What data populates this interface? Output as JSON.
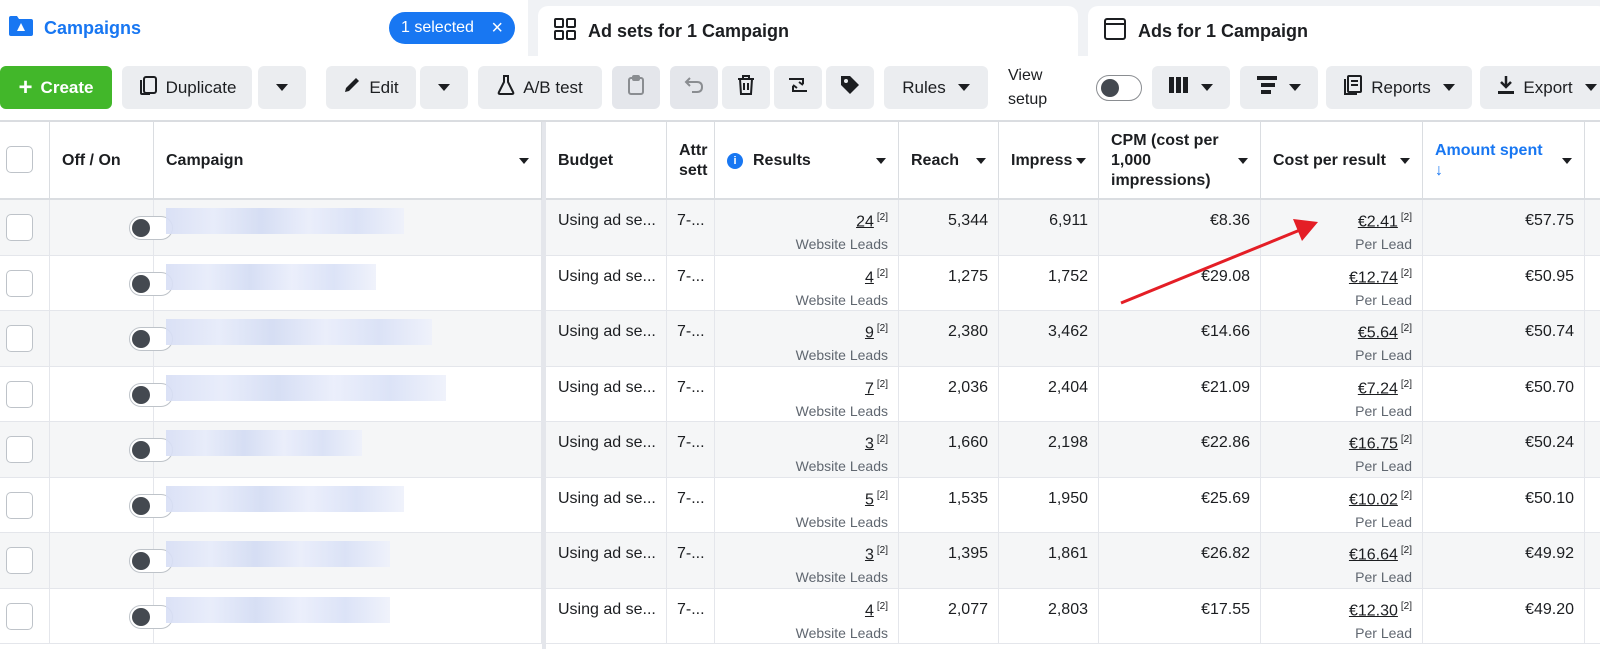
{
  "tabs": {
    "campaigns": "Campaigns",
    "selected": "1 selected",
    "adsets": "Ad sets for 1 Campaign",
    "ads": "Ads for 1 Campaign"
  },
  "toolbar": {
    "create": "Create",
    "duplicate": "Duplicate",
    "edit": "Edit",
    "ab_test": "A/B test",
    "rules": "Rules",
    "view_setup": "View setup",
    "reports": "Reports",
    "export": "Export"
  },
  "columns": {
    "off_on": "Off / On",
    "campaign": "Campaign",
    "budget": "Budget",
    "attribution": "Attr sett",
    "results": "Results",
    "reach": "Reach",
    "impressions": "Impress",
    "cpm": "CPM (cost per 1,000 impressions)",
    "cost_per_result": "Cost per result",
    "amount_spent": "Amount spent ↓"
  },
  "rows": [
    {
      "budget": "Using ad se...",
      "attr": "7-...",
      "results": "24",
      "results_sup": "[2]",
      "results_type": "Website Leads",
      "reach": "5,344",
      "impressions": "6,911",
      "cpm": "€8.36",
      "cpr": "€2.41",
      "cpr_sup": "[2]",
      "cpr_type": "Per Lead",
      "spent": "€57.75"
    },
    {
      "budget": "Using ad se...",
      "attr": "7-...",
      "results": "4",
      "results_sup": "[2]",
      "results_type": "Website Leads",
      "reach": "1,275",
      "impressions": "1,752",
      "cpm": "€29.08",
      "cpr": "€12.74",
      "cpr_sup": "[2]",
      "cpr_type": "Per Lead",
      "spent": "€50.95"
    },
    {
      "budget": "Using ad se...",
      "attr": "7-...",
      "results": "9",
      "results_sup": "[2]",
      "results_type": "Website Leads",
      "reach": "2,380",
      "impressions": "3,462",
      "cpm": "€14.66",
      "cpr": "€5.64",
      "cpr_sup": "[2]",
      "cpr_type": "Per Lead",
      "spent": "€50.74"
    },
    {
      "budget": "Using ad se...",
      "attr": "7-...",
      "results": "7",
      "results_sup": "[2]",
      "results_type": "Website Leads",
      "reach": "2,036",
      "impressions": "2,404",
      "cpm": "€21.09",
      "cpr": "€7.24",
      "cpr_sup": "[2]",
      "cpr_type": "Per Lead",
      "spent": "€50.70"
    },
    {
      "budget": "Using ad se...",
      "attr": "7-...",
      "results": "3",
      "results_sup": "[2]",
      "results_type": "Website Leads",
      "reach": "1,660",
      "impressions": "2,198",
      "cpm": "€22.86",
      "cpr": "€16.75",
      "cpr_sup": "[2]",
      "cpr_type": "Per Lead",
      "spent": "€50.24"
    },
    {
      "budget": "Using ad se...",
      "attr": "7-...",
      "results": "5",
      "results_sup": "[2]",
      "results_type": "Website Leads",
      "reach": "1,535",
      "impressions": "1,950",
      "cpm": "€25.69",
      "cpr": "€10.02",
      "cpr_sup": "[2]",
      "cpr_type": "Per Lead",
      "spent": "€50.10"
    },
    {
      "budget": "Using ad se...",
      "attr": "7-...",
      "results": "3",
      "results_sup": "[2]",
      "results_type": "Website Leads",
      "reach": "1,395",
      "impressions": "1,861",
      "cpm": "€26.82",
      "cpr": "€16.64",
      "cpr_sup": "[2]",
      "cpr_type": "Per Lead",
      "spent": "€49.92"
    },
    {
      "budget": "Using ad se...",
      "attr": "7-...",
      "results": "4",
      "results_sup": "[2]",
      "results_type": "Website Leads",
      "reach": "2,077",
      "impressions": "2,803",
      "cpm": "€17.55",
      "cpr": "€12.30",
      "cpr_sup": "[2]",
      "cpr_type": "Per Lead",
      "spent": "€49.20"
    }
  ],
  "colors": {
    "accent": "#1877f2",
    "create_green": "#42b72a",
    "annotation_arrow": "#e41e26"
  }
}
